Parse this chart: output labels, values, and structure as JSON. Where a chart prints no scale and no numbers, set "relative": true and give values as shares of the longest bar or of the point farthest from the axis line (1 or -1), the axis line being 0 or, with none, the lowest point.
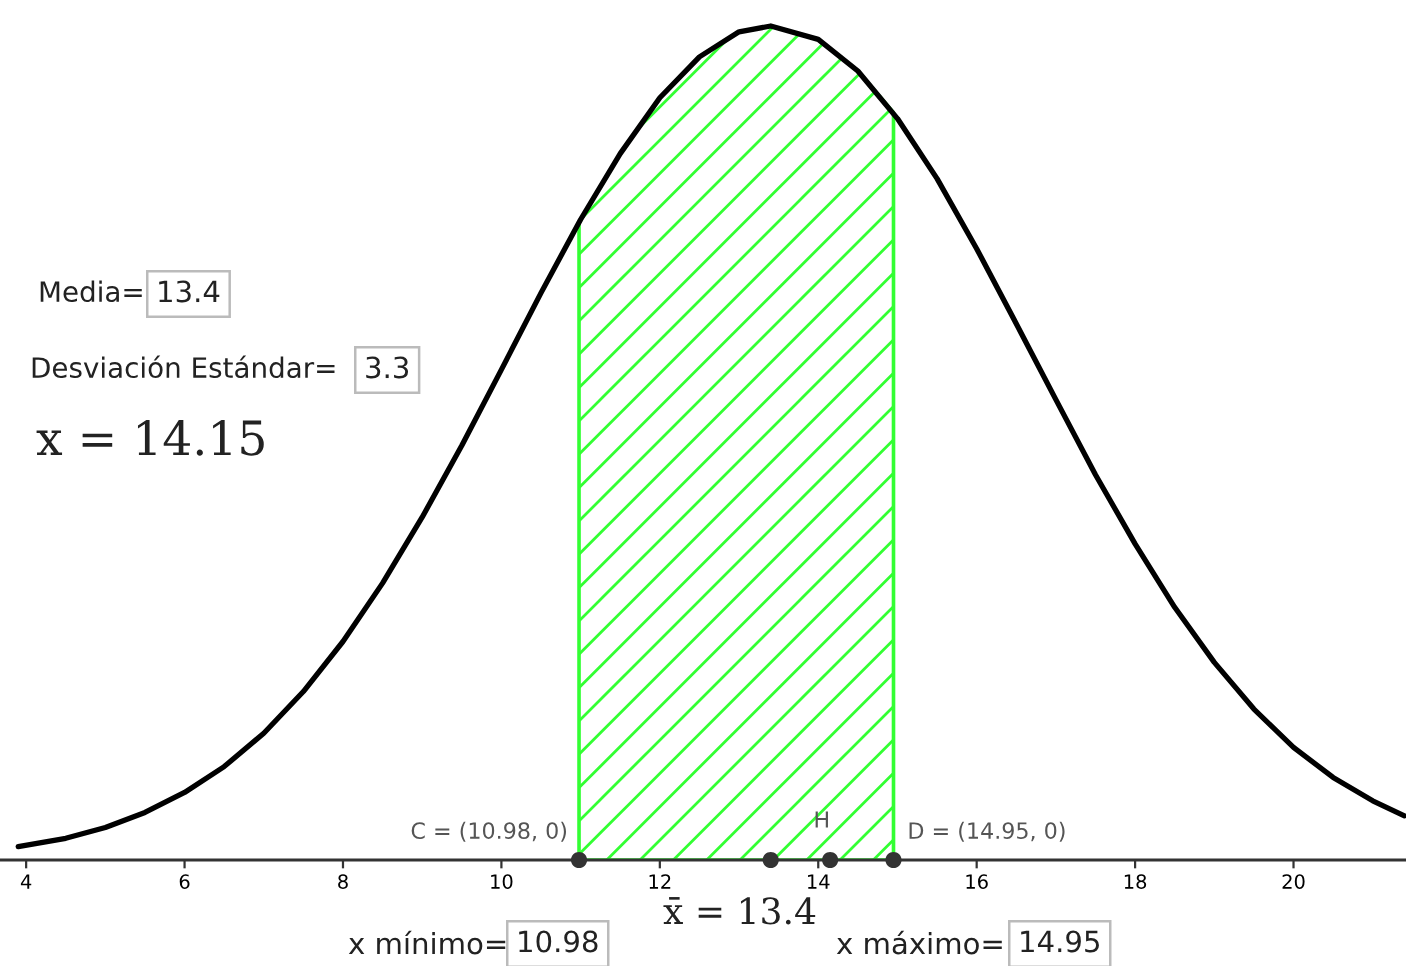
{
  "chart_data": {
    "type": "line",
    "relative": true,
    "tick_labels": "x",
    "xlim": [
      3.67,
      21.42
    ],
    "xticks": [
      4,
      6,
      8,
      10,
      12,
      14,
      16,
      18,
      20
    ],
    "series": [
      {
        "type": "area",
        "color": "#33ff33",
        "x": [
          10.98,
          11.5,
          12,
          12.5,
          13,
          13.4,
          14,
          14.5,
          14.95
        ],
        "values": [
          0.764,
          0.847,
          0.914,
          0.963,
          0.993,
          1.0,
          0.984,
          0.946,
          0.896
        ]
      },
      {
        "color": "#000000",
        "x": [
          3.9,
          4.5,
          5,
          5.5,
          6,
          6.5,
          7,
          7.5,
          8,
          8.5,
          9,
          9.5,
          10,
          10.5,
          11,
          11.5,
          12,
          12.5,
          13,
          13.4,
          14,
          14.5,
          15,
          15.5,
          16,
          16.5,
          17,
          17.5,
          18,
          18.5,
          19,
          19.5,
          20,
          20.5,
          21,
          21.4
        ],
        "values": [
          0.016,
          0.026,
          0.039,
          0.057,
          0.081,
          0.112,
          0.152,
          0.202,
          0.262,
          0.332,
          0.411,
          0.497,
          0.588,
          0.68,
          0.768,
          0.847,
          0.914,
          0.963,
          0.993,
          1.0,
          0.984,
          0.946,
          0.889,
          0.817,
          0.733,
          0.643,
          0.552,
          0.462,
          0.379,
          0.303,
          0.237,
          0.181,
          0.135,
          0.099,
          0.071,
          0.053
        ]
      },
      {
        "type": "scatter",
        "color": "#333333",
        "marker": "circle",
        "x": [
          10.98,
          13.4,
          14.15,
          14.95
        ],
        "values": [
          0,
          0,
          0,
          0
        ]
      }
    ],
    "annotations": [
      "Media=",
      "13.4",
      "Desviación Estándar=",
      "3.3",
      "x = 14.15",
      {
        "text": "C = (10.98, 0)",
        "x": 10.98,
        "y": 0
      },
      {
        "text": "H",
        "x": 14.15,
        "y": 0
      },
      {
        "text": "D = (14.95, 0)",
        "x": 14.95,
        "y": 0
      },
      "x̄ = 13.4",
      "x mínimo=",
      "10.98",
      "x máximo=",
      "14.95"
    ]
  }
}
